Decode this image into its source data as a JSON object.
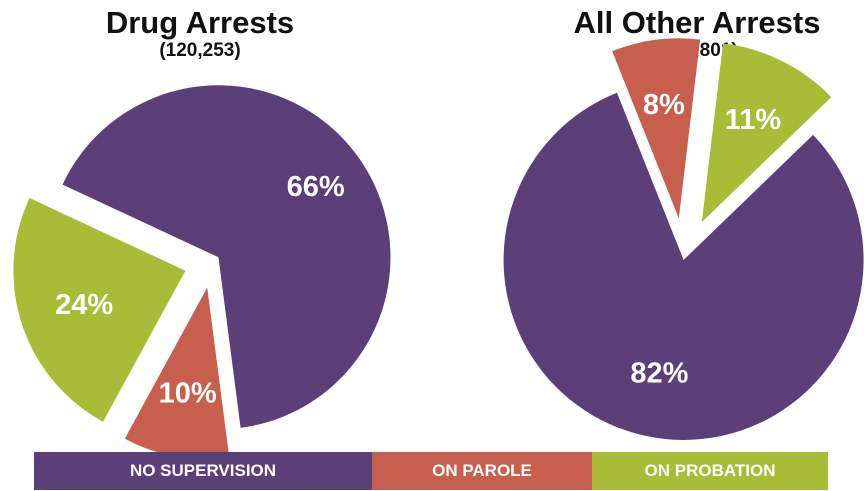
{
  "chart_data": [
    {
      "type": "pie",
      "title": "Drug Arrests",
      "subtitle": "(120,253)",
      "slices": [
        {
          "name": "NO SUPERVISION",
          "value": 66,
          "label": "66%"
        },
        {
          "name": "ON PAROLE",
          "value": 10,
          "label": "10%"
        },
        {
          "name": "ON PROBATION",
          "value": 24,
          "label": "24%"
        }
      ]
    },
    {
      "type": "pie",
      "title": "All Other Arrests",
      "subtitle": "(355,801)",
      "slices": [
        {
          "name": "NO SUPERVISION",
          "value": 82,
          "label": "82%"
        },
        {
          "name": "ON PAROLE",
          "value": 8,
          "label": "8%"
        },
        {
          "name": "ON PROBATION",
          "value": 11,
          "label": "11%"
        }
      ]
    }
  ],
  "legend": [
    {
      "label": "NO SUPERVISION",
      "color": "#5a3f78"
    },
    {
      "label": "ON PAROLE",
      "color": "#c75f4e"
    },
    {
      "label": "ON PROBATION",
      "color": "#a8bc38"
    }
  ]
}
